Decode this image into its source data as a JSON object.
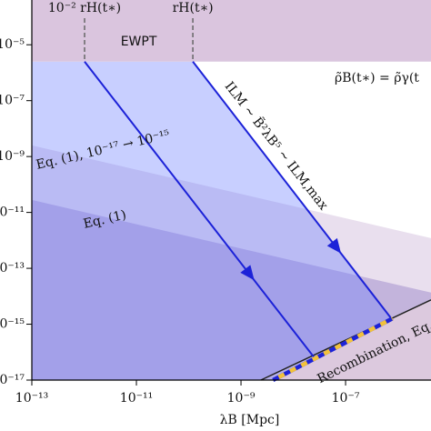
{
  "chart_data": {
    "type": "line",
    "x_label": "λB [Mpc]",
    "xlog": true,
    "ylog": true,
    "xlim": [
      1e-13,
      4.3e-06
    ],
    "ylim": [
      1e-17,
      0.0004
    ],
    "xticks": [
      {
        "value": 1e-13,
        "label": "10⁻¹³"
      },
      {
        "value": 1e-11,
        "label": "10⁻¹¹"
      },
      {
        "value": 1e-09,
        "label": "10⁻⁹"
      },
      {
        "value": 1e-07,
        "label": "10⁻⁷"
      }
    ],
    "yticks": [
      {
        "value": 1e-05,
        "label": "10⁻⁵"
      },
      {
        "value": 1e-07,
        "label": "10⁻⁷"
      },
      {
        "value": 1e-09,
        "label": "10⁻⁹"
      },
      {
        "value": 1e-11,
        "label": "10⁻¹¹"
      },
      {
        "value": 1e-13,
        "label": "10⁻¹³"
      },
      {
        "value": 1e-15,
        "label": "10⁻¹⁵"
      },
      {
        "value": 1e-17,
        "label": "10⁻¹⁷"
      }
    ],
    "regions": [
      {
        "color": "#e9dfee",
        "x": [
          1e-13,
          4.3e-06,
          4.3e-06,
          1e-13
        ],
        "y": [
          2.5e-09,
          1.2e-12,
          1e-17,
          1e-17
        ]
      },
      {
        "color": "#c3b4dc",
        "x": [
          1e-13,
          4.3e-06,
          4.3e-06,
          1e-13
        ],
        "y": [
          2.8e-11,
          1.35e-14,
          1e-17,
          1e-17
        ]
      },
      {
        "color": "#dcc9de",
        "x": [
          2.4e-09,
          4.3e-06,
          4.3e-06
        ],
        "y": [
          1e-17,
          7.4e-15,
          1e-17
        ]
      },
      {
        "color": "#6e82ff",
        "opacity": 0.38,
        "x": [
          1e-13,
          1.2e-10,
          7.9e-07,
          4.1e-09,
          1e-13
        ],
        "y": [
          2.5e-06,
          2.5e-06,
          1.4e-15,
          1e-17,
          1e-17
        ]
      },
      {
        "label": "EWPT",
        "color": "#dac5de",
        "x": [
          1e-13,
          4.3e-06,
          4.3e-06,
          1e-13
        ],
        "y": [
          2.5e-06,
          2.5e-06,
          0.0004,
          0.0004
        ]
      }
    ],
    "guides": [
      {
        "label": "10⁻² rH(t∗)",
        "x": 1.02e-12
      },
      {
        "label": "rH(t∗)",
        "x": 1.2e-10
      }
    ],
    "series": [
      {
        "color": "#1c22d8",
        "x": [
          1.02e-12,
          2.5e-08
        ],
        "y": [
          2.5e-06,
          6.5e-17
        ]
      },
      {
        "color": "#1c22d8",
        "x": [
          1.2e-10,
          7.9e-07
        ],
        "y": [
          2.5e-06,
          1.4e-15
        ]
      }
    ],
    "recombination": {
      "color": "#222222",
      "x": [
        2.4e-09,
        4.3e-06
      ],
      "y": [
        1e-17,
        7.4e-15
      ]
    },
    "dashed": {
      "colors": [
        "#1c22d8",
        "#f2c23a"
      ],
      "x": [
        4.1e-09,
        7.9e-07
      ],
      "y": [
        1e-17,
        1.6e-15
      ]
    },
    "annotations": [
      {
        "text": "ρ̃B(t∗) = ρ̃γ(t"
      },
      {
        "text": "ILM ∼ B̃²λB⁵ ∼ ILM,max"
      },
      {
        "text": "Eq. (1), 10⁻¹⁷ → 10⁻¹⁵"
      },
      {
        "text": "Eq. (1)"
      },
      {
        "text": "Recombination, Eq."
      }
    ]
  }
}
